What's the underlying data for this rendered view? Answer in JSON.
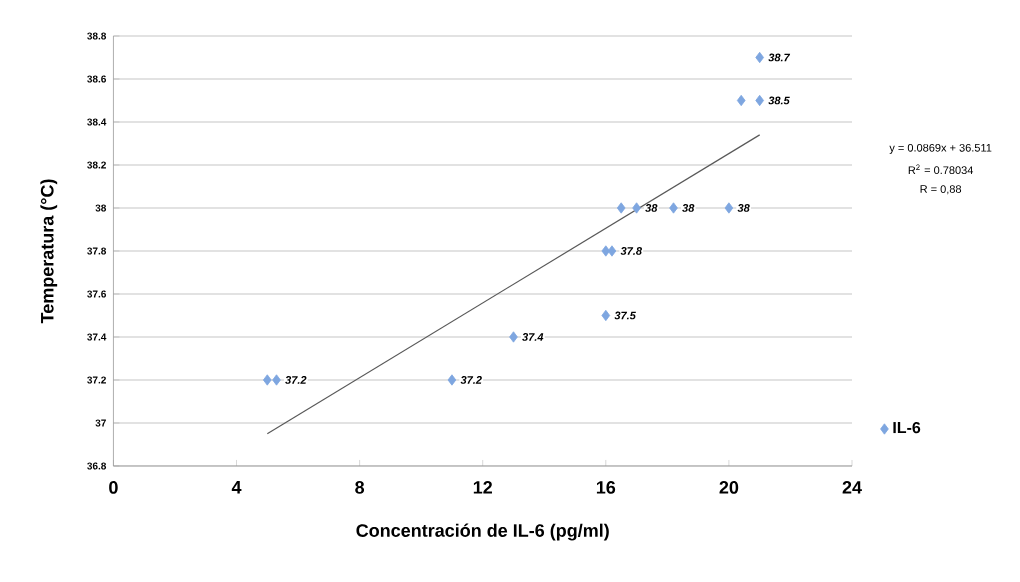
{
  "chart_data": {
    "type": "scatter",
    "xlabel": "Concentración de IL-6 (pg/ml)",
    "ylabel": "Temperatura (°C)",
    "xlim": [
      0,
      24
    ],
    "xticks": [
      0,
      4,
      8,
      12,
      16,
      20,
      24
    ],
    "ylim": [
      36.8,
      38.8
    ],
    "yticks": [
      36.8,
      37,
      37.2,
      37.4,
      37.6,
      37.8,
      38,
      38.2,
      38.4,
      38.6,
      38.8
    ],
    "grid": "y",
    "legend": "right",
    "series": [
      {
        "name": "IL-6",
        "type": "scatter",
        "marker": "diamond",
        "color": "#7ea6e0",
        "value_labels": [
          null,
          "37.2",
          "37.2",
          "37.4",
          "37.5",
          null,
          "37.8",
          null,
          "38",
          "38",
          "38",
          null,
          "38.5",
          "38.7"
        ],
        "x": [
          5,
          5.3,
          11,
          13,
          16,
          16,
          16.2,
          16.5,
          17,
          18.2,
          20,
          20.4,
          21,
          21
        ],
        "values": [
          37.2,
          37.2,
          37.2,
          37.4,
          37.5,
          37.8,
          37.8,
          38,
          38,
          38,
          38,
          38.5,
          38.5,
          38.7
        ]
      },
      {
        "type": "line",
        "marker": "none",
        "color": "#595959",
        "x": [
          5,
          21
        ],
        "values": [
          36.95,
          38.34
        ]
      }
    ],
    "annotations": [
      "y = 0.0869x + 36.511",
      "R$^{2}$ = 0.78034",
      "R = 0,88"
    ]
  }
}
